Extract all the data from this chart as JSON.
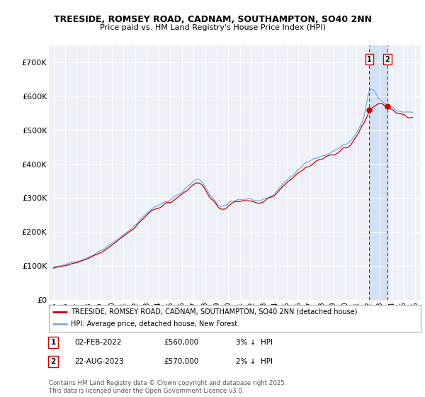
{
  "title": "TREESIDE, ROMSEY ROAD, CADNAM, SOUTHAMPTON, SO40 2NN",
  "subtitle": "Price paid vs. HM Land Registry's House Price Index (HPI)",
  "ylabel_ticks": [
    "£0",
    "£100K",
    "£200K",
    "£300K",
    "£400K",
    "£500K",
    "£600K",
    "£700K"
  ],
  "ytick_values": [
    0,
    100000,
    200000,
    300000,
    400000,
    500000,
    600000,
    700000
  ],
  "ylim": [
    0,
    750000
  ],
  "xlim_start": 1994.6,
  "xlim_end": 2026.5,
  "legend_line1": "TREESIDE, ROMSEY ROAD, CADNAM, SOUTHAMPTON, SO40 2NN (detached house)",
  "legend_line2": "HPI: Average price, detached house, New Forest",
  "annotation1_num": "1",
  "annotation1_date": "02-FEB-2022",
  "annotation1_price": "£560,000",
  "annotation1_hpi": "3% ↓  HPI",
  "annotation2_num": "2",
  "annotation2_date": "22-AUG-2023",
  "annotation2_price": "£570,000",
  "annotation2_hpi": "2% ↓  HPI",
  "footer": "Contains HM Land Registry data © Crown copyright and database right 2025.\nThis data is licensed under the Open Government Licence v3.0.",
  "red_color": "#cc0000",
  "blue_color": "#7aaadd",
  "marker1_x": 2022.09,
  "marker2_x": 2023.64,
  "marker1_y": 560000,
  "marker2_y": 570000,
  "background_color": "#eef2f8",
  "shade_color": "#d0e0f5"
}
